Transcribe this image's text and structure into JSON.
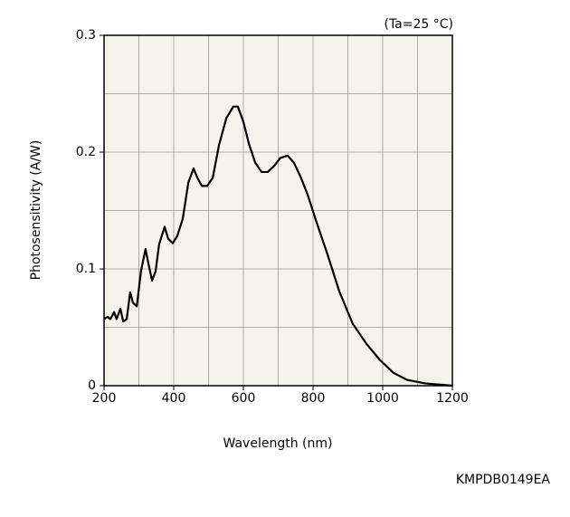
{
  "chart_data": {
    "type": "line",
    "x_label": "Wavelength (nm)",
    "y_label": "Photosensitivity (A/W)",
    "annotations": [
      "(Ta=25 °C)",
      "KMPDB0149EA"
    ],
    "x": [
      200,
      210,
      218,
      229,
      236,
      247,
      255,
      265,
      275,
      283,
      294,
      306,
      319,
      327,
      338,
      348,
      358,
      374,
      384,
      397,
      410,
      426,
      442,
      457,
      468,
      481,
      496,
      512,
      530,
      551,
      571,
      584,
      600,
      616,
      634,
      652,
      670,
      688,
      706,
      727,
      745,
      764,
      784,
      810,
      842,
      875,
      914,
      953,
      992,
      1031,
      1070,
      1122,
      1200
    ],
    "series": [
      {
        "name": "Photosensitivity",
        "color": "#000000",
        "values": [
          0.057,
          0.059,
          0.057,
          0.063,
          0.057,
          0.066,
          0.055,
          0.057,
          0.08,
          0.071,
          0.068,
          0.098,
          0.117,
          0.105,
          0.09,
          0.098,
          0.121,
          0.136,
          0.126,
          0.122,
          0.128,
          0.143,
          0.174,
          0.186,
          0.178,
          0.171,
          0.171,
          0.178,
          0.206,
          0.229,
          0.239,
          0.239,
          0.226,
          0.207,
          0.191,
          0.183,
          0.183,
          0.188,
          0.195,
          0.197,
          0.191,
          0.179,
          0.164,
          0.14,
          0.112,
          0.081,
          0.053,
          0.036,
          0.022,
          0.011,
          0.005,
          0.002,
          0.0
        ]
      }
    ],
    "xlim": [
      200,
      1200
    ],
    "ylim": [
      0,
      0.3
    ],
    "xticks": [
      200,
      400,
      600,
      800,
      1000,
      1200
    ],
    "yticks": [
      0,
      0.1,
      0.2,
      0.3
    ],
    "x_grid": [
      200,
      300,
      400,
      500,
      600,
      700,
      800,
      900,
      1000,
      1100,
      1200
    ],
    "y_grid": [
      0,
      0.05,
      0.1,
      0.15,
      0.2,
      0.25,
      0.3
    ],
    "grid": true,
    "background": "#f5f4ec"
  }
}
